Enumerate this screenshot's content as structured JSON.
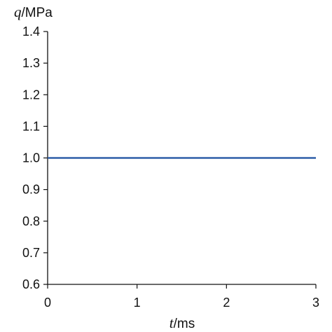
{
  "chart_data": {
    "type": "line",
    "ylabel": {
      "var": "q",
      "unit": "/MPa"
    },
    "xlabel": {
      "var": "t",
      "unit": "/ms"
    },
    "xlim": [
      0,
      3
    ],
    "ylim": [
      0.6,
      1.4
    ],
    "xticks": [
      "0",
      "1",
      "2",
      "3"
    ],
    "yticks": [
      "0.6",
      "0.7",
      "0.8",
      "0.9",
      "1.0",
      "1.1",
      "1.2",
      "1.3",
      "1.4"
    ],
    "grid": false,
    "series": [
      {
        "color": "#2e5ea8",
        "x": [
          0,
          3
        ],
        "y": [
          1.0,
          1.0
        ]
      }
    ]
  }
}
